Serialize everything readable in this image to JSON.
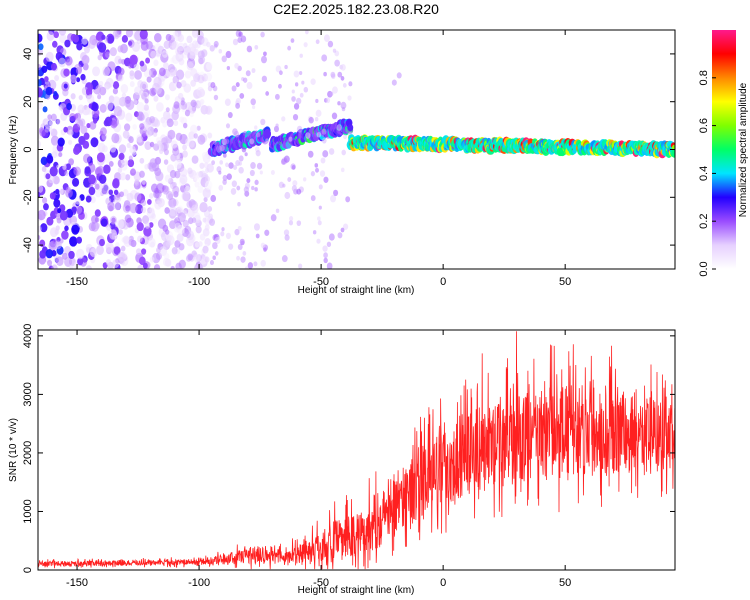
{
  "figure": {
    "title": "C2E2.2025.182.23.08.R20"
  },
  "chart_data": [
    {
      "type": "heatmap",
      "name": "spectrogram",
      "xlabel": "Height of straight line (km)",
      "ylabel": "Frequency (Hz)",
      "xlim": [
        -166,
        95
      ],
      "ylim": [
        -50,
        50
      ],
      "x_ticks": [
        -150,
        -100,
        -50,
        0,
        50
      ],
      "y_ticks": [
        -40,
        -20,
        0,
        20,
        40
      ],
      "colorbar": {
        "label": "Normalized spectral amplitude",
        "range": [
          0,
          1
        ],
        "ticks": [
          "0.0",
          "0.2",
          "0.4",
          "0.6",
          "0.8"
        ],
        "colormap": [
          "#ffffff",
          "#e6d0ff",
          "#9a4cff",
          "#2200ff",
          "#00e5ff",
          "#00ff66",
          "#7fff00",
          "#ffff00",
          "#ff8800",
          "#ff0000",
          "#ff1a8c"
        ]
      },
      "regions": [
        {
          "x_range": [
            -166,
            -95
          ],
          "description": "scattered noise",
          "amplitude": [
            0.05,
            0.35
          ]
        },
        {
          "x_range": [
            -95,
            -72
          ],
          "trend_frequency": [
            0,
            6
          ],
          "amplitude": [
            0.3,
            0.5
          ]
        },
        {
          "x_range": [
            -70,
            -38
          ],
          "trend_frequency": [
            2,
            10
          ],
          "amplitude": [
            0.3,
            0.55
          ]
        },
        {
          "x_range": [
            -38,
            95
          ],
          "trend_frequency": [
            3,
            0
          ],
          "amplitude": [
            0.6,
            1.0
          ]
        }
      ],
      "isolated_points": [
        {
          "x": -20,
          "y": 28,
          "amplitude": 0.15
        },
        {
          "x": -18,
          "y": 31,
          "amplitude": 0.15
        }
      ]
    },
    {
      "type": "line",
      "name": "snr",
      "xlabel": "Height of straight line (km)",
      "ylabel": "SNR (10 * v/v)",
      "xlim": [
        -166,
        95
      ],
      "ylim": [
        0,
        4100
      ],
      "x_ticks": [
        -150,
        -100,
        -50,
        0,
        50
      ],
      "y_ticks": [
        0,
        1000,
        2000,
        3000,
        4000
      ],
      "color": "#ff2020",
      "envelope": [
        {
          "x": -166,
          "base": 100,
          "amp": 80
        },
        {
          "x": -100,
          "base": 130,
          "amp": 90
        },
        {
          "x": -90,
          "base": 170,
          "amp": 160
        },
        {
          "x": -75,
          "base": 270,
          "amp": 320
        },
        {
          "x": -65,
          "base": 200,
          "amp": 220
        },
        {
          "x": -55,
          "base": 320,
          "amp": 400
        },
        {
          "x": -45,
          "base": 450,
          "amp": 650
        },
        {
          "x": -35,
          "base": 560,
          "amp": 750
        },
        {
          "x": -25,
          "base": 850,
          "amp": 900
        },
        {
          "x": -15,
          "base": 1250,
          "amp": 1050
        },
        {
          "x": -5,
          "base": 1550,
          "amp": 1150
        },
        {
          "x": 5,
          "base": 1800,
          "amp": 1250
        },
        {
          "x": 15,
          "base": 2000,
          "amp": 1300
        },
        {
          "x": 30,
          "base": 2150,
          "amp": 1400
        },
        {
          "x": 50,
          "base": 2300,
          "amp": 1450
        },
        {
          "x": 70,
          "base": 2300,
          "amp": 1350
        },
        {
          "x": 95,
          "base": 2150,
          "amp": 1100
        }
      ],
      "peaks": [
        {
          "x": 16,
          "y": 3700
        },
        {
          "x": 30,
          "y": 4080
        },
        {
          "x": 44,
          "y": 3850
        },
        {
          "x": 69,
          "y": 3830
        }
      ]
    }
  ]
}
